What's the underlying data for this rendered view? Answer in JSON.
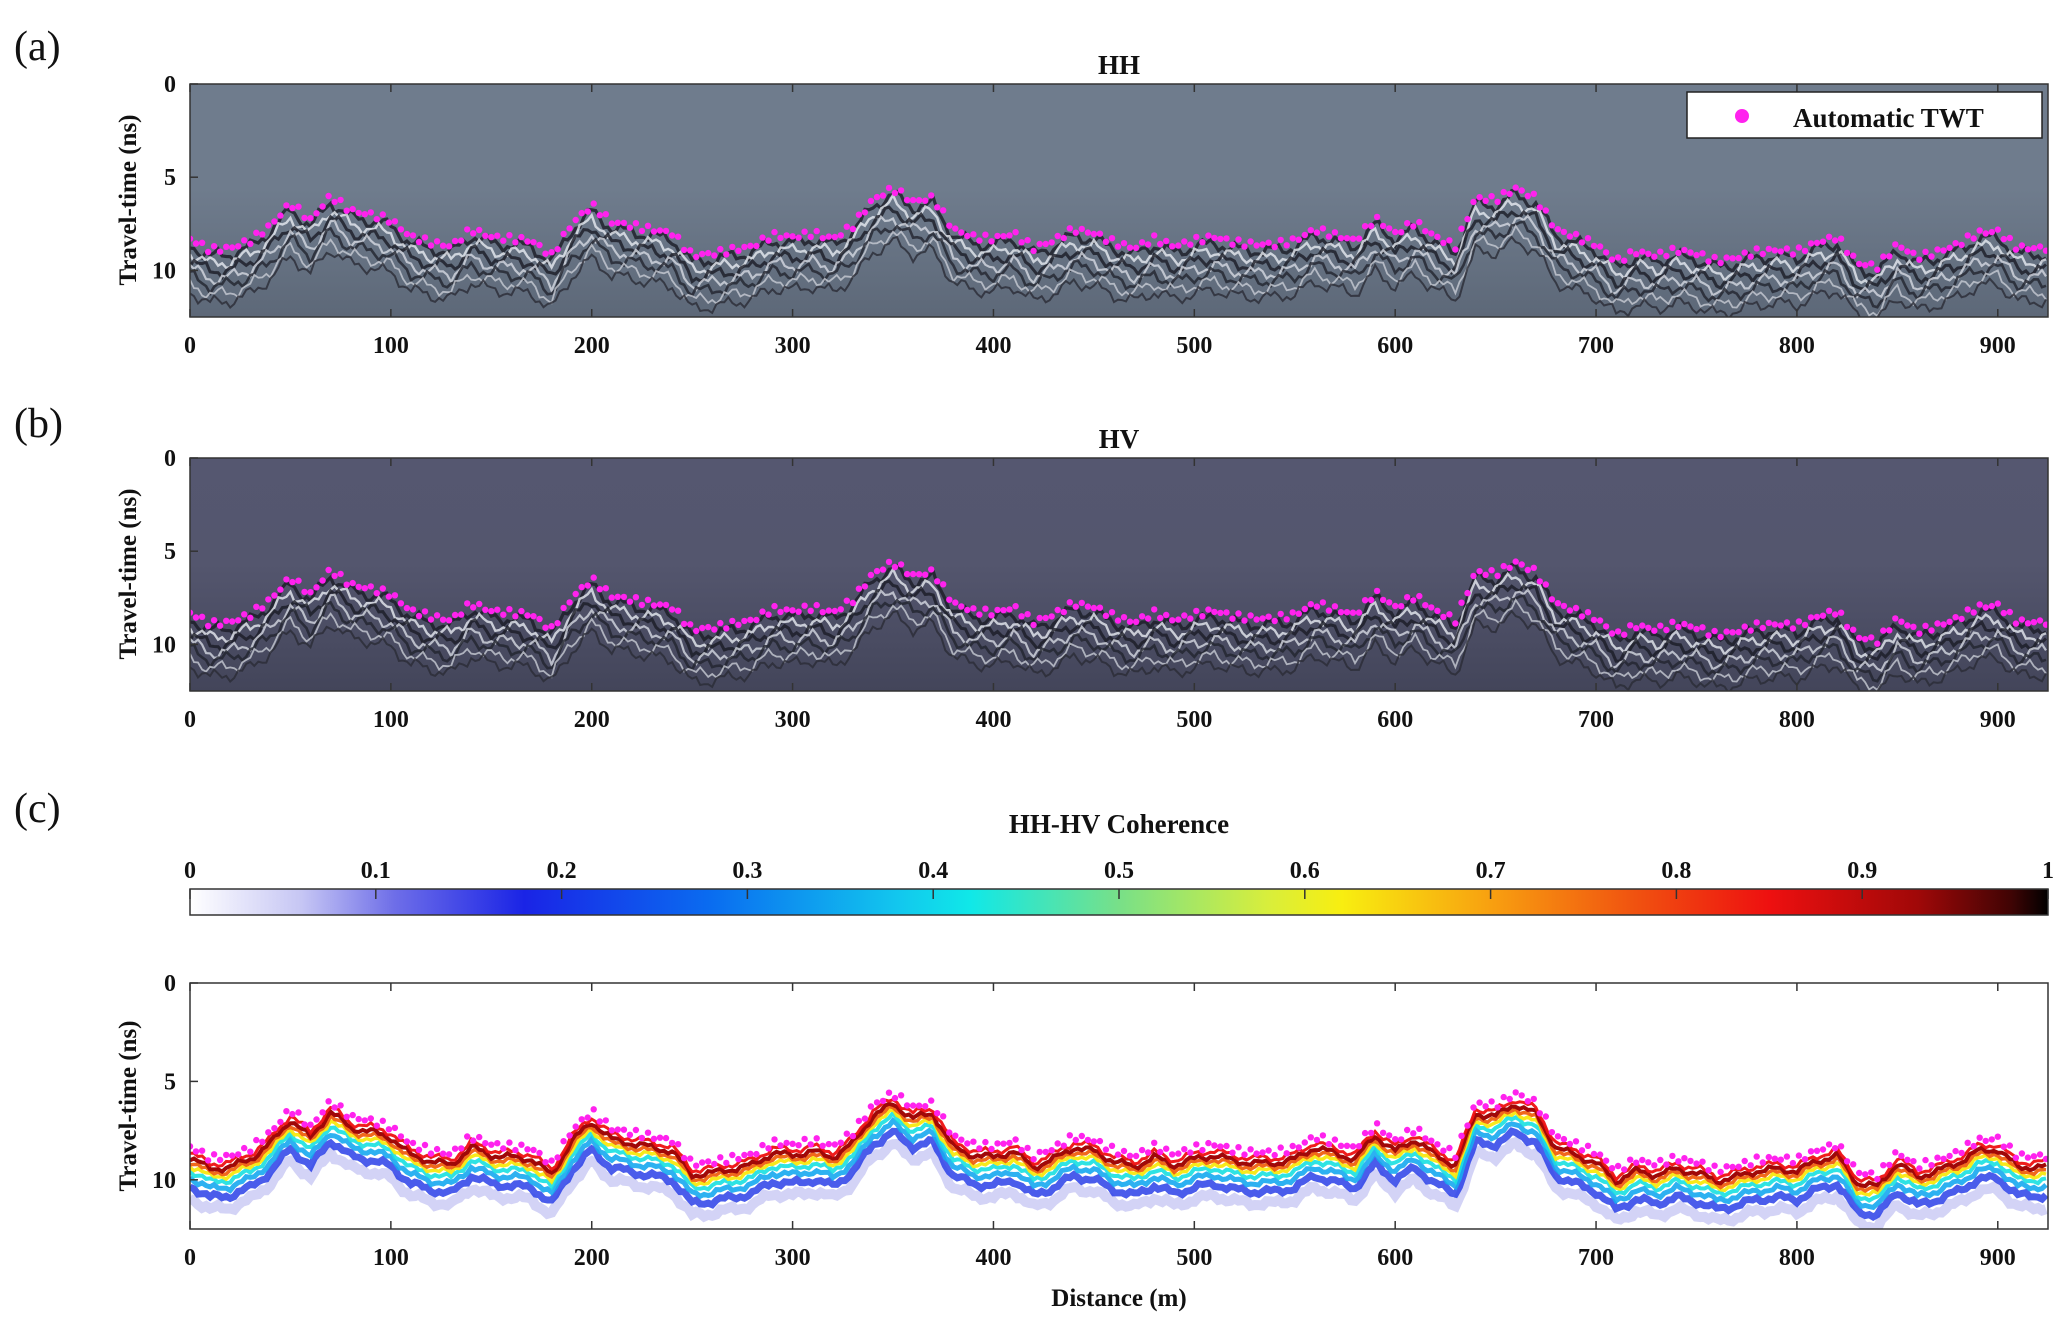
{
  "panels": {
    "a": {
      "letter": "(a)",
      "title": "HH"
    },
    "b": {
      "letter": "(b)",
      "title": "HV"
    },
    "c": {
      "letter": "(c)",
      "title": ""
    }
  },
  "legend": {
    "label": "Automatic TWT",
    "marker_color": "#ff22ee"
  },
  "colorbar": {
    "title": "HH-HV Coherence",
    "ticks": [
      "0",
      "0.1",
      "0.2",
      "0.3",
      "0.4",
      "0.5",
      "0.6",
      "0.7",
      "0.8",
      "0.9",
      "1"
    ]
  },
  "colors": {
    "hh_background": "#6e7b8c",
    "hv_background": "#54566f",
    "pick_color": "#ff22ee"
  },
  "chart_data": [
    {
      "type": "heatmap",
      "panel": "a",
      "title": "HH",
      "xlabel": "",
      "ylabel": "Travel-time (ns)",
      "xlim": [
        0,
        925
      ],
      "ylim": [
        12.5,
        0
      ],
      "x_ticks": [
        "0",
        "100",
        "200",
        "300",
        "400",
        "500",
        "600",
        "700",
        "800",
        "900"
      ],
      "y_ticks": [
        "0",
        "5",
        "10"
      ],
      "series": [
        {
          "name": "Automatic TWT",
          "x": [
            0,
            10,
            20,
            30,
            40,
            50,
            60,
            70,
            80,
            90,
            100,
            110,
            120,
            130,
            140,
            150,
            160,
            170,
            180,
            190,
            200,
            210,
            220,
            230,
            240,
            250,
            260,
            270,
            280,
            290,
            300,
            310,
            320,
            330,
            340,
            350,
            360,
            370,
            380,
            390,
            400,
            410,
            420,
            430,
            440,
            450,
            460,
            470,
            480,
            490,
            500,
            510,
            520,
            530,
            540,
            550,
            560,
            570,
            580,
            590,
            600,
            610,
            620,
            630,
            640,
            650,
            660,
            670,
            680,
            690,
            700,
            710,
            720,
            730,
            740,
            750,
            760,
            770,
            780,
            790,
            800,
            810,
            820,
            830,
            840,
            850,
            860,
            870,
            880,
            890,
            900,
            910,
            920
          ],
          "y": [
            8.3,
            8.9,
            8.8,
            8.4,
            7.6,
            6.4,
            7.3,
            6.0,
            6.8,
            7.0,
            7.3,
            8.2,
            8.5,
            8.7,
            7.8,
            8.2,
            8.3,
            8.4,
            9.2,
            7.5,
            6.5,
            7.4,
            7.6,
            7.8,
            8.0,
            9.2,
            9.1,
            8.9,
            8.7,
            8.1,
            8.2,
            8.0,
            8.3,
            7.6,
            6.2,
            5.6,
            6.3,
            6.1,
            7.8,
            8.2,
            8.3,
            8.0,
            8.8,
            8.4,
            7.8,
            8.0,
            8.5,
            8.8,
            8.3,
            8.7,
            8.4,
            8.2,
            8.5,
            8.6,
            8.6,
            8.4,
            7.8,
            8.1,
            8.4,
            7.2,
            8.0,
            7.4,
            8.2,
            8.7,
            6.1,
            6.2,
            5.6,
            6.1,
            7.8,
            8.2,
            8.6,
            9.5,
            9.0,
            9.2,
            8.9,
            9.1,
            9.5,
            9.3,
            9.0,
            8.9,
            9.0,
            8.5,
            8.2,
            9.6,
            9.8,
            8.6,
            9.3,
            9.0,
            8.6,
            8.0,
            7.9,
            8.8,
            8.8
          ]
        }
      ]
    },
    {
      "type": "heatmap",
      "panel": "b",
      "title": "HV",
      "xlabel": "",
      "ylabel": "Travel-time (ns)",
      "xlim": [
        0,
        925
      ],
      "ylim": [
        12.5,
        0
      ],
      "x_ticks": [
        "0",
        "100",
        "200",
        "300",
        "400",
        "500",
        "600",
        "700",
        "800",
        "900"
      ],
      "y_ticks": [
        "0",
        "5",
        "10"
      ],
      "series_ref": "same Automatic TWT picks as panel (a)"
    },
    {
      "type": "heatmap",
      "panel": "c",
      "title": "HH-HV Coherence",
      "xlabel": "Distance (m)",
      "ylabel": "Travel-time (ns)",
      "xlim": [
        0,
        925
      ],
      "ylim": [
        12.5,
        0
      ],
      "x_ticks": [
        "0",
        "100",
        "200",
        "300",
        "400",
        "500",
        "600",
        "700",
        "800",
        "900"
      ],
      "y_ticks": [
        "0",
        "5",
        "10"
      ],
      "colorbar_range": [
        0,
        1
      ],
      "note_band": "high-coherence band follows Automatic TWT picks, peak coherence ~0.8 just below the pick"
    }
  ],
  "axis_labels": {
    "ylabel": "Travel-time (ns)",
    "xlabel": "Distance (m)"
  }
}
